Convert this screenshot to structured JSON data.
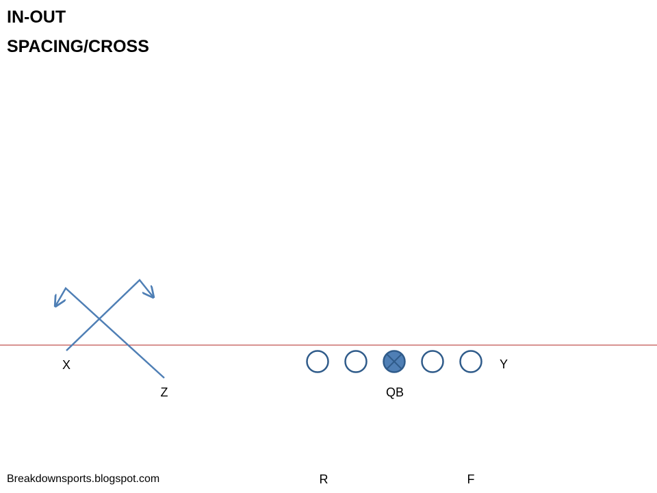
{
  "title": {
    "line1": "IN-OUT",
    "line2": "SPACING/CROSS"
  },
  "players": {
    "x": "X",
    "z": "Z",
    "qb": "QB",
    "y": "Y",
    "r": "R",
    "f": "F"
  },
  "footer": "Breakdownsports.blogspot.com",
  "colors": {
    "route": "#4f7fb5",
    "lineman_stroke": "#2f5b8a",
    "qb_fill": "#4f7fb5",
    "line_of_scrimmage": "#c0504d"
  }
}
